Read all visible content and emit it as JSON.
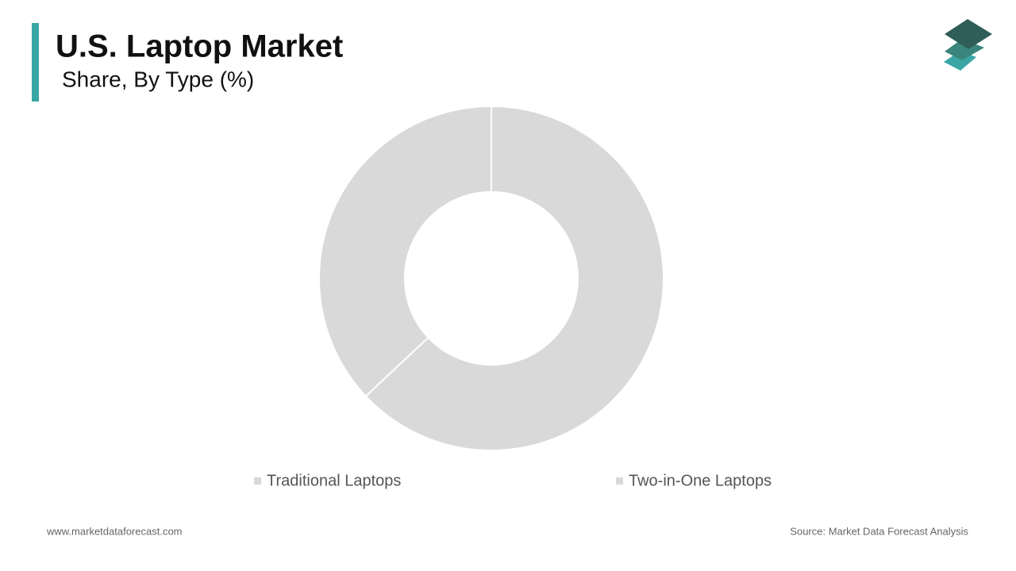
{
  "chart_data": {
    "type": "donut",
    "title": "U.S. Laptop Market",
    "subtitle": "Share, By Type (%)",
    "categories": [
      "Traditional Laptops",
      "Two-in-One Laptops"
    ],
    "values": [
      63,
      37
    ],
    "colors": [
      "#d9d9d9",
      "#d9d9d9"
    ]
  },
  "footer": {
    "website": "www.marketdataforecast.com",
    "source": "Source: Market Data Forecast Analysis"
  }
}
